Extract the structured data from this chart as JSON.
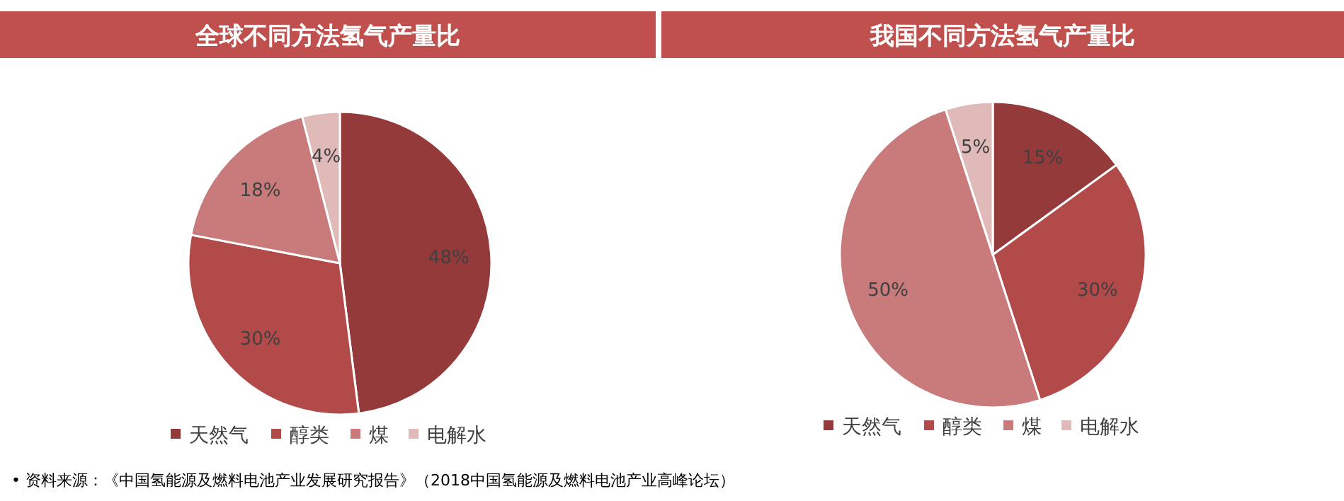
{
  "chart_data": [
    {
      "type": "pie",
      "title": "全球不同方法氢气产量比",
      "categories": [
        "天然气",
        "醇类",
        "煤",
        "电解水"
      ],
      "values": [
        48,
        30,
        18,
        4
      ],
      "value_labels": [
        "48%",
        "30%",
        "18%",
        "4%"
      ],
      "colors": [
        "#953a3a",
        "#b34a4a",
        "#c97b7b",
        "#e0b9b9"
      ],
      "legend": "bottom",
      "annotations": [
        "• 资料来源：《中国氢能源及燃料电池产业发展研究报告》（2018中国氢能源及燃料电池产业高峰论坛）"
      ]
    },
    {
      "type": "pie",
      "title": "我国不同方法氢气产量比",
      "categories": [
        "天然气",
        "醇类",
        "煤",
        "电解水"
      ],
      "values": [
        15,
        30,
        50,
        5
      ],
      "value_labels": [
        "15%",
        "30%",
        "50%",
        "5%"
      ],
      "colors": [
        "#953a3a",
        "#b34a4a",
        "#c97b7b",
        "#e0b9b9"
      ],
      "legend": "bottom"
    }
  ]
}
